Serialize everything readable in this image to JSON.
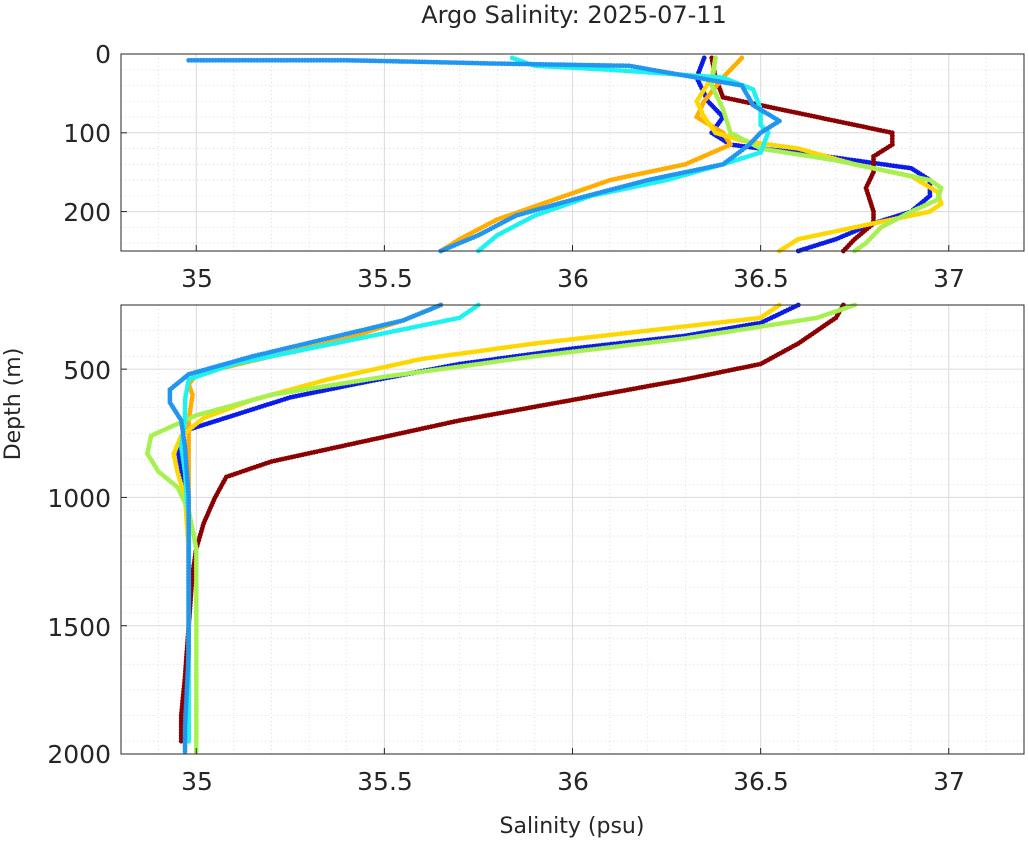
{
  "chart_data": {
    "type": "scatter",
    "title": "Argo Salinity: 2025-07-11",
    "xlabel": "Salinity (psu)",
    "ylabel": "Depth (m)",
    "grid": true,
    "panels": [
      {
        "name": "upper",
        "xlim": [
          34.8,
          37.2
        ],
        "ylim": [
          0,
          250
        ],
        "y_reversed": true,
        "xticks": [
          35,
          35.5,
          36,
          36.5,
          37
        ],
        "xtick_labels": [
          "35",
          "35.5",
          "36",
          "36.5",
          "37"
        ],
        "yticks": [
          0,
          100,
          200
        ],
        "ytick_labels": [
          "0",
          "100",
          "200"
        ]
      },
      {
        "name": "lower",
        "xlim": [
          34.8,
          37.2
        ],
        "ylim": [
          250,
          2000
        ],
        "y_reversed": true,
        "xticks": [
          35,
          35.5,
          36,
          36.5,
          37
        ],
        "xtick_labels": [
          "35",
          "35.5",
          "36",
          "36.5",
          "37"
        ],
        "yticks": [
          500,
          1000,
          1500,
          2000
        ],
        "ytick_labels": [
          "500",
          "1000",
          "1500",
          "2000"
        ]
      }
    ],
    "series": [
      {
        "name": "profile-blue",
        "color": "#0a1de8",
        "points": [
          [
            36.35,
            5
          ],
          [
            36.33,
            30
          ],
          [
            36.36,
            60
          ],
          [
            36.4,
            80
          ],
          [
            36.37,
            100
          ],
          [
            36.42,
            115
          ],
          [
            36.5,
            120
          ],
          [
            36.6,
            125
          ],
          [
            36.75,
            135
          ],
          [
            36.9,
            145
          ],
          [
            36.95,
            160
          ],
          [
            36.95,
            180
          ],
          [
            36.9,
            200
          ],
          [
            36.8,
            215
          ],
          [
            36.7,
            235
          ],
          [
            36.6,
            250
          ],
          [
            36.5,
            320
          ],
          [
            36.3,
            370
          ],
          [
            36.0,
            420
          ],
          [
            35.7,
            480
          ],
          [
            35.45,
            550
          ],
          [
            35.25,
            610
          ],
          [
            35.1,
            680
          ],
          [
            34.97,
            740
          ],
          [
            34.95,
            800
          ],
          [
            34.96,
            900
          ],
          [
            34.97,
            1000
          ],
          [
            34.98,
            1100
          ],
          [
            34.98,
            1300
          ],
          [
            34.98,
            1500
          ],
          [
            34.98,
            1700
          ],
          [
            34.98,
            1950
          ]
        ]
      },
      {
        "name": "profile-darkred",
        "color": "#8b0000",
        "points": [
          [
            36.37,
            5
          ],
          [
            36.38,
            30
          ],
          [
            36.4,
            55
          ],
          [
            36.55,
            70
          ],
          [
            36.65,
            80
          ],
          [
            36.75,
            90
          ],
          [
            36.85,
            100
          ],
          [
            36.85,
            115
          ],
          [
            36.8,
            130
          ],
          [
            36.8,
            150
          ],
          [
            36.78,
            170
          ],
          [
            36.8,
            200
          ],
          [
            36.8,
            215
          ],
          [
            36.75,
            235
          ],
          [
            36.72,
            250
          ],
          [
            36.7,
            300
          ],
          [
            36.6,
            400
          ],
          [
            36.5,
            480
          ],
          [
            36.3,
            540
          ],
          [
            36.0,
            620
          ],
          [
            35.7,
            700
          ],
          [
            35.45,
            780
          ],
          [
            35.2,
            860
          ],
          [
            35.08,
            920
          ],
          [
            35.05,
            1000
          ],
          [
            35.02,
            1100
          ],
          [
            35.0,
            1200
          ],
          [
            34.99,
            1300
          ],
          [
            34.98,
            1500
          ],
          [
            34.97,
            1700
          ],
          [
            34.96,
            1850
          ],
          [
            34.96,
            1950
          ]
        ]
      },
      {
        "name": "profile-orange",
        "color": "#ffad00",
        "points": [
          [
            36.45,
            5
          ],
          [
            36.4,
            30
          ],
          [
            36.35,
            60
          ],
          [
            36.33,
            80
          ],
          [
            36.4,
            100
          ],
          [
            36.42,
            115
          ],
          [
            36.3,
            140
          ],
          [
            36.1,
            160
          ],
          [
            35.95,
            185
          ],
          [
            35.8,
            210
          ],
          [
            35.7,
            235
          ],
          [
            35.65,
            250
          ],
          [
            35.55,
            310
          ],
          [
            35.4,
            380
          ],
          [
            35.2,
            450
          ],
          [
            35.0,
            520
          ],
          [
            34.98,
            560
          ],
          [
            34.99,
            600
          ],
          [
            34.98,
            700
          ],
          [
            34.98,
            900
          ],
          [
            34.98,
            1100
          ],
          [
            34.98,
            1400
          ],
          [
            34.98,
            1700
          ],
          [
            34.98,
            1950
          ]
        ]
      },
      {
        "name": "profile-yellow",
        "color": "#ffd700",
        "points": [
          [
            36.38,
            5
          ],
          [
            36.37,
            30
          ],
          [
            36.33,
            60
          ],
          [
            36.35,
            80
          ],
          [
            36.38,
            100
          ],
          [
            36.45,
            110
          ],
          [
            36.6,
            120
          ],
          [
            36.75,
            140
          ],
          [
            36.9,
            155
          ],
          [
            36.97,
            175
          ],
          [
            36.98,
            190
          ],
          [
            36.95,
            200
          ],
          [
            36.8,
            215
          ],
          [
            36.6,
            235
          ],
          [
            36.55,
            250
          ],
          [
            36.5,
            300
          ],
          [
            36.2,
            350
          ],
          [
            35.9,
            400
          ],
          [
            35.6,
            460
          ],
          [
            35.35,
            540
          ],
          [
            35.15,
            620
          ],
          [
            35.02,
            690
          ],
          [
            34.96,
            760
          ],
          [
            34.94,
            830
          ],
          [
            34.95,
            900
          ],
          [
            34.97,
            1000
          ],
          [
            34.98,
            1200
          ],
          [
            34.98,
            1500
          ],
          [
            34.98,
            1800
          ],
          [
            34.98,
            1950
          ]
        ]
      },
      {
        "name": "profile-lightgreen",
        "color": "#a6f050",
        "points": [
          [
            36.38,
            5
          ],
          [
            36.37,
            40
          ],
          [
            36.4,
            70
          ],
          [
            36.42,
            100
          ],
          [
            36.5,
            120
          ],
          [
            36.7,
            135
          ],
          [
            36.85,
            150
          ],
          [
            36.95,
            160
          ],
          [
            36.98,
            170
          ],
          [
            36.97,
            185
          ],
          [
            36.9,
            200
          ],
          [
            36.82,
            220
          ],
          [
            36.78,
            240
          ],
          [
            36.75,
            250
          ],
          [
            36.65,
            300
          ],
          [
            36.3,
            380
          ],
          [
            35.9,
            450
          ],
          [
            35.5,
            530
          ],
          [
            35.2,
            600
          ],
          [
            35.0,
            680
          ],
          [
            34.88,
            760
          ],
          [
            34.87,
            830
          ],
          [
            34.9,
            900
          ],
          [
            34.95,
            960
          ],
          [
            34.98,
            1050
          ],
          [
            35.0,
            1200
          ],
          [
            35.0,
            1500
          ],
          [
            35.0,
            1800
          ],
          [
            35.0,
            1990
          ]
        ]
      },
      {
        "name": "profile-cyan",
        "color": "#1ef2f0",
        "points": [
          [
            35.84,
            5
          ],
          [
            35.9,
            15
          ],
          [
            36.1,
            20
          ],
          [
            36.4,
            30
          ],
          [
            36.48,
            45
          ],
          [
            36.5,
            70
          ],
          [
            36.5,
            90
          ],
          [
            36.52,
            100
          ],
          [
            36.5,
            125
          ],
          [
            36.4,
            140
          ],
          [
            36.25,
            160
          ],
          [
            36.05,
            180
          ],
          [
            35.9,
            205
          ],
          [
            35.8,
            230
          ],
          [
            35.75,
            250
          ],
          [
            35.7,
            300
          ],
          [
            35.5,
            360
          ],
          [
            35.3,
            420
          ],
          [
            35.1,
            480
          ],
          [
            34.98,
            540
          ],
          [
            34.97,
            620
          ],
          [
            34.97,
            700
          ],
          [
            34.96,
            800
          ],
          [
            34.97,
            900
          ],
          [
            34.98,
            1100
          ],
          [
            34.98,
            1400
          ],
          [
            34.98,
            1700
          ],
          [
            34.98,
            1950
          ]
        ]
      },
      {
        "name": "profile-skyblue",
        "color": "#2196f0",
        "points": [
          [
            34.98,
            8
          ],
          [
            35.4,
            8
          ],
          [
            35.6,
            10
          ],
          [
            35.78,
            12
          ],
          [
            36.15,
            15
          ],
          [
            36.45,
            40
          ],
          [
            36.48,
            65
          ],
          [
            36.55,
            85
          ],
          [
            36.5,
            100
          ],
          [
            36.47,
            115
          ],
          [
            36.4,
            140
          ],
          [
            36.2,
            160
          ],
          [
            36.0,
            185
          ],
          [
            35.85,
            205
          ],
          [
            35.75,
            230
          ],
          [
            35.65,
            250
          ],
          [
            35.55,
            310
          ],
          [
            35.35,
            380
          ],
          [
            35.15,
            450
          ],
          [
            34.98,
            520
          ],
          [
            34.93,
            580
          ],
          [
            34.93,
            630
          ],
          [
            34.96,
            700
          ],
          [
            34.97,
            800
          ],
          [
            34.98,
            1000
          ],
          [
            34.98,
            1300
          ],
          [
            34.98,
            1600
          ],
          [
            34.97,
            1900
          ],
          [
            34.97,
            1990
          ]
        ]
      }
    ]
  }
}
